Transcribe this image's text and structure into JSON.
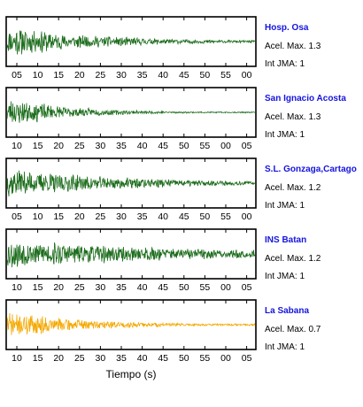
{
  "chart_data": {
    "type": "line",
    "xlabel": "Tiempo (s)",
    "panels": [
      {
        "station": "Hosp. Osa",
        "acel_label": "Acel. Max. 1.3",
        "jma_label": "Int JMA: 1",
        "color": "#1e6e1e",
        "x_ticks": [
          "05",
          "10",
          "15",
          "20",
          "25",
          "30",
          "35",
          "40",
          "45",
          "50",
          "55",
          "00"
        ],
        "waveform": {
          "onset": 0.0,
          "peak_amp": 1.0,
          "decay": 2.6,
          "noise_floor": 0.06,
          "seed": 11
        }
      },
      {
        "station": "San Ignacio Acosta",
        "acel_label": "Acel. Max. 1.3",
        "jma_label": "Int JMA: 1",
        "color": "#1e6e1e",
        "x_ticks": [
          "10",
          "15",
          "20",
          "25",
          "30",
          "35",
          "40",
          "45",
          "50",
          "55",
          "00",
          "05"
        ],
        "waveform": {
          "onset": 0.0,
          "peak_amp": 1.0,
          "decay": 4.0,
          "noise_floor": 0.04,
          "seed": 23
        }
      },
      {
        "station": "S.L. Gonzaga,Cartago",
        "acel_label": "Acel. Max. 1.2",
        "jma_label": "Int JMA: 1",
        "color": "#1e6e1e",
        "x_ticks": [
          "05",
          "10",
          "15",
          "20",
          "25",
          "30",
          "35",
          "40",
          "45",
          "50",
          "55",
          "00"
        ],
        "waveform": {
          "onset": 0.0,
          "peak_amp": 0.95,
          "decay": 2.0,
          "noise_floor": 0.07,
          "seed": 37
        }
      },
      {
        "station": "INS Batan",
        "acel_label": "Acel. Max. 1.2",
        "jma_label": "Int JMA: 1",
        "color": "#1e6e1e",
        "x_ticks": [
          "10",
          "15",
          "20",
          "25",
          "30",
          "35",
          "40",
          "45",
          "50",
          "55",
          "00",
          "05"
        ],
        "waveform": {
          "onset": 0.0,
          "peak_amp": 0.95,
          "decay": 1.3,
          "noise_floor": 0.12,
          "seed": 53
        }
      },
      {
        "station": "La Sabana",
        "acel_label": "Acel. Max. 0.7",
        "jma_label": "Int JMA: 1",
        "color": "#f5a800",
        "x_ticks": [
          "10",
          "15",
          "20",
          "25",
          "30",
          "35",
          "40",
          "45",
          "50",
          "55",
          "00",
          "05"
        ],
        "waveform": {
          "onset": 0.0,
          "peak_amp": 0.95,
          "decay": 3.2,
          "noise_floor": 0.07,
          "seed": 71
        }
      }
    ]
  }
}
